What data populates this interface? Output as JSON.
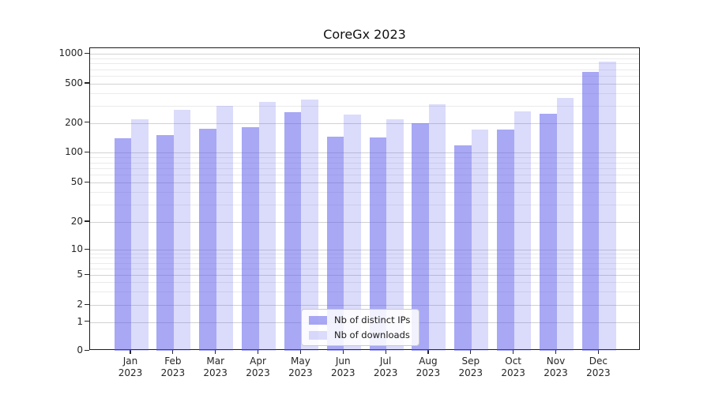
{
  "title": "CoreGx 2023",
  "chart_data": {
    "type": "bar",
    "title": "CoreGx 2023",
    "categories": [
      "Jan 2023",
      "Feb 2023",
      "Mar 2023",
      "Apr 2023",
      "May 2023",
      "Jun 2023",
      "Jul 2023",
      "Aug 2023",
      "Sep 2023",
      "Oct 2023",
      "Nov 2023",
      "Dec 2023"
    ],
    "series": [
      {
        "name": "Nb of distinct IPs",
        "color": "#a7a7f4",
        "values": [
          140,
          152,
          174,
          182,
          258,
          146,
          144,
          200,
          119,
          173,
          250,
          660
        ]
      },
      {
        "name": "Nb of downloads",
        "color": "#dbdbf9",
        "values": [
          216,
          274,
          296,
          325,
          347,
          243,
          218,
          309,
          173,
          262,
          355,
          830
        ]
      }
    ],
    "xlabel": "",
    "ylabel": "",
    "yscale": "symlog",
    "y_ticks": [
      0,
      1,
      2,
      5,
      10,
      20,
      50,
      100,
      200,
      500,
      1000
    ],
    "ylim": [
      0,
      1100
    ],
    "grid": "horizontal major and minor gridlines",
    "legend_position": "lower center inside axes",
    "bar_base_color": "#5a5aeb"
  }
}
